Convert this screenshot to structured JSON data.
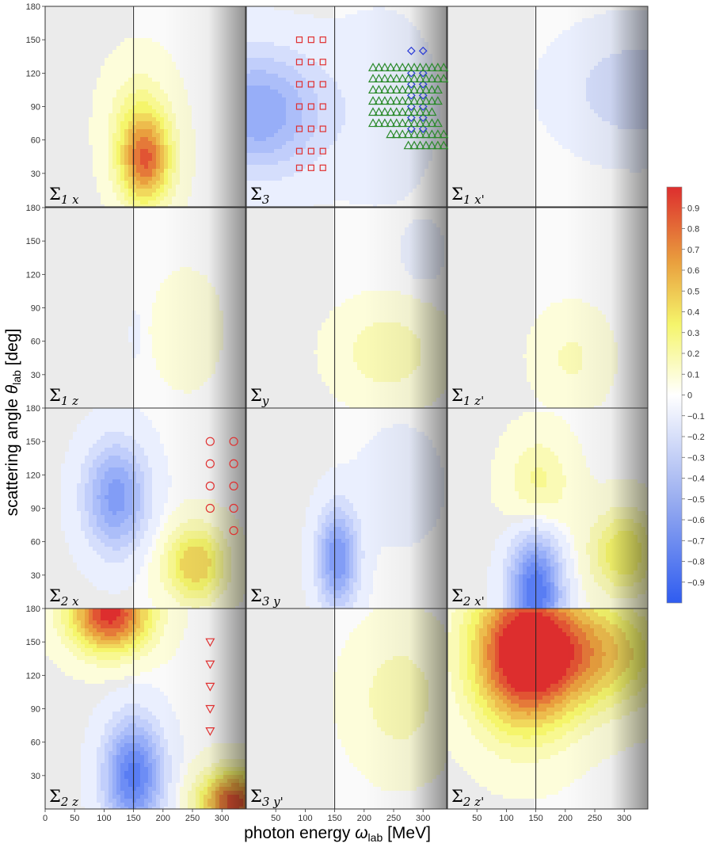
{
  "chart_data": {
    "type": "contour",
    "ylabel_main": "scattering angle ",
    "ylabel_theta": "θ",
    "ylabel_sub": "lab",
    "ylabel_unit": " [deg]",
    "xlabel_main": "photon energy ",
    "xlabel_omega": "ω",
    "xlabel_sub": "lab",
    "xlabel_unit": " [MeV]",
    "xlim": [
      0,
      340
    ],
    "ylim": [
      0,
      180
    ],
    "x_ticks": [
      "0",
      "50",
      "100",
      "150",
      "200",
      "250",
      "300"
    ],
    "x_tick_values": [
      0,
      50,
      100,
      150,
      200,
      250,
      300
    ],
    "y_ticks": [
      "30",
      "60",
      "90",
      "120",
      "150",
      "180"
    ],
    "y_tick_values": [
      30,
      60,
      90,
      120,
      150,
      180
    ],
    "threshold_energy": 150,
    "colorbar": {
      "ticks": [
        "0.9",
        "0.8",
        "0.7",
        "0.6",
        "0.5",
        "0.4",
        "0.3",
        "0.2",
        "0.1",
        "0",
        "−0.1",
        "−0.2",
        "−0.3",
        "−0.4",
        "−0.5",
        "−0.6",
        "−0.7",
        "−0.8",
        "−0.9"
      ],
      "levels": [
        0.9,
        0.8,
        0.7,
        0.6,
        0.5,
        0.4,
        0.3,
        0.2,
        0.1,
        0,
        -0.1,
        -0.2,
        -0.3,
        -0.4,
        -0.5,
        -0.6,
        -0.7,
        -0.8,
        -0.9
      ],
      "range": [
        -1,
        1
      ],
      "colors": {
        "neg": "#2f5cf0",
        "zero": "#ffffff",
        "pos_low": "#f5f56b",
        "pos_mid": "#e99f3e",
        "pos_high": "#dd2e2e"
      }
    },
    "panels": [
      {
        "label": "Σ",
        "sub": "1 x",
        "row": 0,
        "col": 0,
        "features": [
          {
            "x": 170,
            "y": 40,
            "sx": 45,
            "sy": 40,
            "a": 0.75
          },
          {
            "x": 160,
            "y": 80,
            "sx": 55,
            "sy": 50,
            "a": 0.25
          }
        ]
      },
      {
        "label": "Σ",
        "sub": "3",
        "row": 0,
        "col": 1,
        "features": [
          {
            "x": 20,
            "y": 85,
            "sx": 110,
            "sy": 55,
            "a": -0.55
          },
          {
            "x": 230,
            "y": 90,
            "sx": 90,
            "sy": 80,
            "a": -0.1
          }
        ]
      },
      {
        "label": "Σ",
        "sub": "1 x'",
        "row": 0,
        "col": 2,
        "features": [
          {
            "x": 320,
            "y": 105,
            "sx": 120,
            "sy": 50,
            "a": -0.25
          }
        ]
      },
      {
        "label": "Σ",
        "sub": "1 z",
        "row": 1,
        "col": 0,
        "features": [
          {
            "x": 240,
            "y": 70,
            "sx": 50,
            "sy": 45,
            "a": 0.14
          },
          {
            "x": 153,
            "y": 65,
            "sx": 8,
            "sy": 20,
            "a": -0.12
          }
        ]
      },
      {
        "label": "Σ",
        "sub": "y",
        "row": 1,
        "col": 1,
        "features": [
          {
            "x": 240,
            "y": 50,
            "sx": 85,
            "sy": 40,
            "a": 0.24
          },
          {
            "x": 300,
            "y": 140,
            "sx": 40,
            "sy": 30,
            "a": -0.08
          }
        ]
      },
      {
        "label": "Σ",
        "sub": "1 z'",
        "row": 1,
        "col": 2,
        "features": [
          {
            "x": 210,
            "y": 45,
            "sx": 60,
            "sy": 40,
            "a": 0.17
          }
        ]
      },
      {
        "label": "Σ",
        "sub": "2 x",
        "row": 2,
        "col": 0,
        "features": [
          {
            "x": 120,
            "y": 100,
            "sx": 55,
            "sy": 50,
            "a": -0.6
          },
          {
            "x": 255,
            "y": 40,
            "sx": 55,
            "sy": 35,
            "a": 0.55
          }
        ]
      },
      {
        "label": "Σ",
        "sub": "3 y",
        "row": 2,
        "col": 1,
        "features": [
          {
            "x": 155,
            "y": 45,
            "sx": 35,
            "sy": 45,
            "a": -0.65
          },
          {
            "x": 260,
            "y": 110,
            "sx": 70,
            "sy": 50,
            "a": -0.1
          }
        ]
      },
      {
        "label": "Σ",
        "sub": "2 x'",
        "row": 2,
        "col": 2,
        "features": [
          {
            "x": 150,
            "y": 15,
            "sx": 45,
            "sy": 55,
            "a": -0.85
          },
          {
            "x": 155,
            "y": 110,
            "sx": 55,
            "sy": 45,
            "a": 0.3
          },
          {
            "x": 300,
            "y": 50,
            "sx": 60,
            "sy": 40,
            "a": 0.45
          }
        ]
      },
      {
        "label": "Σ",
        "sub": "2 z",
        "row": 3,
        "col": 0,
        "features": [
          {
            "x": 110,
            "y": 175,
            "sx": 70,
            "sy": 35,
            "a": 1.0
          },
          {
            "x": 150,
            "y": 30,
            "sx": 50,
            "sy": 50,
            "a": -0.8
          },
          {
            "x": 320,
            "y": 5,
            "sx": 60,
            "sy": 30,
            "a": 0.9
          }
        ]
      },
      {
        "label": "Σ",
        "sub": "3 y'",
        "row": 3,
        "col": 1,
        "features": [
          {
            "x": 260,
            "y": 100,
            "sx": 80,
            "sy": 60,
            "a": 0.22
          }
        ]
      },
      {
        "label": "Σ",
        "sub": "2 z'",
        "row": 3,
        "col": 2,
        "features": [
          {
            "x": 130,
            "y": 140,
            "sx": 90,
            "sy": 70,
            "a": 1.05
          },
          {
            "x": 250,
            "y": 140,
            "sx": 130,
            "sy": 50,
            "a": 0.55
          }
        ]
      }
    ],
    "data_series": [
      {
        "panel": 1,
        "marker": "square",
        "color": "#e03030",
        "points": [
          [
            90,
            150
          ],
          [
            110,
            150
          ],
          [
            130,
            150
          ],
          [
            90,
            130
          ],
          [
            110,
            130
          ],
          [
            130,
            130
          ],
          [
            90,
            110
          ],
          [
            110,
            110
          ],
          [
            130,
            110
          ],
          [
            90,
            90
          ],
          [
            110,
            90
          ],
          [
            130,
            90
          ],
          [
            90,
            70
          ],
          [
            110,
            70
          ],
          [
            130,
            70
          ],
          [
            90,
            50
          ],
          [
            110,
            50
          ],
          [
            130,
            50
          ],
          [
            90,
            35
          ],
          [
            110,
            35
          ],
          [
            130,
            35
          ]
        ]
      },
      {
        "panel": 1,
        "marker": "diamond",
        "color": "#2a3ad6",
        "points": [
          [
            280,
            140
          ],
          [
            300,
            140
          ],
          [
            280,
            120
          ],
          [
            300,
            120
          ],
          [
            280,
            110
          ],
          [
            300,
            110
          ],
          [
            280,
            100
          ],
          [
            300,
            100
          ],
          [
            280,
            90
          ],
          [
            300,
            90
          ],
          [
            280,
            80
          ],
          [
            300,
            80
          ],
          [
            280,
            70
          ],
          [
            300,
            70
          ]
        ]
      },
      {
        "panel": 1,
        "marker": "triangle",
        "color": "#2a8a2a",
        "points": [
          [
            215,
            125
          ],
          [
            225,
            125
          ],
          [
            235,
            125
          ],
          [
            245,
            125
          ],
          [
            255,
            125
          ],
          [
            265,
            125
          ],
          [
            275,
            125
          ],
          [
            285,
            125
          ],
          [
            295,
            125
          ],
          [
            305,
            125
          ],
          [
            315,
            125
          ],
          [
            325,
            125
          ],
          [
            335,
            125
          ],
          [
            215,
            115
          ],
          [
            225,
            115
          ],
          [
            235,
            115
          ],
          [
            245,
            115
          ],
          [
            255,
            115
          ],
          [
            265,
            115
          ],
          [
            275,
            115
          ],
          [
            285,
            115
          ],
          [
            295,
            115
          ],
          [
            305,
            115
          ],
          [
            315,
            115
          ],
          [
            325,
            115
          ],
          [
            335,
            115
          ],
          [
            215,
            105
          ],
          [
            225,
            105
          ],
          [
            235,
            105
          ],
          [
            245,
            105
          ],
          [
            255,
            105
          ],
          [
            265,
            105
          ],
          [
            275,
            105
          ],
          [
            285,
            105
          ],
          [
            295,
            105
          ],
          [
            305,
            105
          ],
          [
            315,
            105
          ],
          [
            325,
            105
          ],
          [
            215,
            95
          ],
          [
            225,
            95
          ],
          [
            235,
            95
          ],
          [
            245,
            95
          ],
          [
            255,
            95
          ],
          [
            265,
            95
          ],
          [
            275,
            95
          ],
          [
            285,
            95
          ],
          [
            295,
            95
          ],
          [
            305,
            95
          ],
          [
            315,
            95
          ],
          [
            325,
            95
          ],
          [
            215,
            85
          ],
          [
            225,
            85
          ],
          [
            235,
            85
          ],
          [
            245,
            85
          ],
          [
            255,
            85
          ],
          [
            265,
            85
          ],
          [
            275,
            85
          ],
          [
            285,
            85
          ],
          [
            295,
            85
          ],
          [
            305,
            85
          ],
          [
            315,
            85
          ],
          [
            215,
            75
          ],
          [
            225,
            75
          ],
          [
            235,
            75
          ],
          [
            245,
            75
          ],
          [
            255,
            75
          ],
          [
            265,
            75
          ],
          [
            275,
            75
          ],
          [
            285,
            75
          ],
          [
            295,
            75
          ],
          [
            305,
            75
          ],
          [
            315,
            75
          ],
          [
            325,
            75
          ],
          [
            245,
            65
          ],
          [
            255,
            65
          ],
          [
            265,
            65
          ],
          [
            275,
            65
          ],
          [
            285,
            65
          ],
          [
            295,
            65
          ],
          [
            305,
            65
          ],
          [
            315,
            65
          ],
          [
            325,
            65
          ],
          [
            335,
            65
          ],
          [
            275,
            55
          ],
          [
            285,
            55
          ],
          [
            295,
            55
          ],
          [
            305,
            55
          ],
          [
            315,
            55
          ],
          [
            325,
            55
          ],
          [
            335,
            55
          ]
        ]
      },
      {
        "panel": 6,
        "marker": "circle",
        "color": "#e03030",
        "points": [
          [
            280,
            150
          ],
          [
            280,
            130
          ],
          [
            280,
            110
          ],
          [
            280,
            90
          ],
          [
            320,
            150
          ],
          [
            320,
            130
          ],
          [
            320,
            110
          ],
          [
            320,
            90
          ],
          [
            320,
            70
          ]
        ]
      },
      {
        "panel": 9,
        "marker": "triangle-down",
        "color": "#e03030",
        "points": [
          [
            280,
            150
          ],
          [
            280,
            130
          ],
          [
            280,
            110
          ],
          [
            280,
            90
          ],
          [
            280,
            70
          ]
        ]
      }
    ]
  }
}
